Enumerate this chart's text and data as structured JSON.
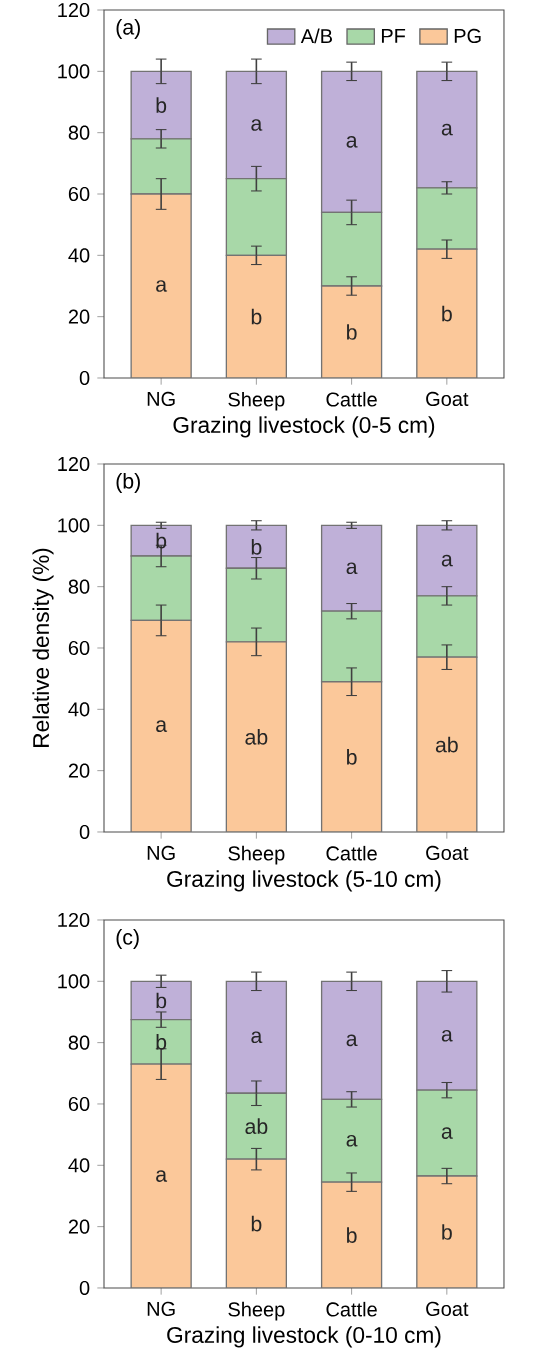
{
  "chart_data": [
    {
      "type": "bar",
      "stacked": true,
      "title": "(a)",
      "xlabel": "Grazing livestock (0-5 cm)",
      "categories": [
        "NG",
        "Sheep",
        "Cattle",
        "Goat"
      ],
      "ylim": [
        0,
        120
      ],
      "yticks": [
        0,
        20,
        40,
        60,
        80,
        100,
        120
      ],
      "legend": "top right",
      "series": [
        {
          "name": "PG",
          "color": "#fbc89a",
          "values": [
            60,
            40,
            30,
            42
          ],
          "errors": [
            5,
            3,
            3,
            3
          ],
          "value_labels": [
            "a",
            "b",
            "b",
            "b"
          ]
        },
        {
          "name": "PF",
          "color": "#a8d8a8",
          "values": [
            18,
            25,
            24,
            20
          ],
          "errors": [
            3,
            4,
            4,
            2
          ]
        },
        {
          "name": "A/B",
          "color": "#bfb0d8",
          "values": [
            22,
            35,
            46,
            38
          ],
          "errors": [
            4,
            4,
            3,
            3
          ],
          "value_labels": [
            "b",
            "a",
            "a",
            "a"
          ]
        }
      ]
    },
    {
      "type": "bar",
      "stacked": true,
      "title": "(b)",
      "xlabel": "Grazing livestock (5-10 cm)",
      "ylabel": "Relative density (%)",
      "categories": [
        "NG",
        "Sheep",
        "Cattle",
        "Goat"
      ],
      "ylim": [
        0,
        120
      ],
      "yticks": [
        0,
        20,
        40,
        60,
        80,
        100,
        120
      ],
      "series": [
        {
          "color": "#fbc89a",
          "values": [
            69,
            62,
            49,
            57
          ],
          "errors": [
            5,
            4.5,
            4.5,
            4
          ],
          "value_labels": [
            "a",
            "ab",
            "b",
            "ab"
          ]
        },
        {
          "color": "#a8d8a8",
          "values": [
            21,
            24,
            23,
            20
          ],
          "errors": [
            3.5,
            3.5,
            2.5,
            3
          ]
        },
        {
          "color": "#bfb0d8",
          "values": [
            10,
            14,
            28,
            23
          ],
          "errors": [
            1,
            1.5,
            1,
            1.5
          ],
          "value_labels": [
            "b",
            "b",
            "a",
            "a"
          ]
        }
      ]
    },
    {
      "type": "bar",
      "stacked": true,
      "title": "(c)",
      "xlabel": "Grazing livestock (0-10 cm)",
      "categories": [
        "NG",
        "Sheep",
        "Cattle",
        "Goat"
      ],
      "ylim": [
        0,
        120
      ],
      "yticks": [
        0,
        20,
        40,
        60,
        80,
        100,
        120
      ],
      "series": [
        {
          "color": "#fbc89a",
          "values": [
            73,
            42,
            34.5,
            36.5
          ],
          "errors": [
            5,
            3.5,
            3,
            2.5
          ],
          "value_labels": [
            "a",
            "b",
            "b",
            "b"
          ]
        },
        {
          "color": "#a8d8a8",
          "values": [
            14.5,
            21.5,
            27,
            28
          ],
          "errors": [
            2.5,
            4,
            2.5,
            2.5
          ],
          "value_labels": [
            "b",
            "ab",
            "a",
            "a"
          ]
        },
        {
          "color": "#bfb0d8",
          "values": [
            12.5,
            36.5,
            38.5,
            35.5
          ],
          "errors": [
            2,
            3,
            3,
            3.5
          ],
          "value_labels": [
            "b",
            "a",
            "a",
            "a"
          ]
        }
      ]
    }
  ]
}
